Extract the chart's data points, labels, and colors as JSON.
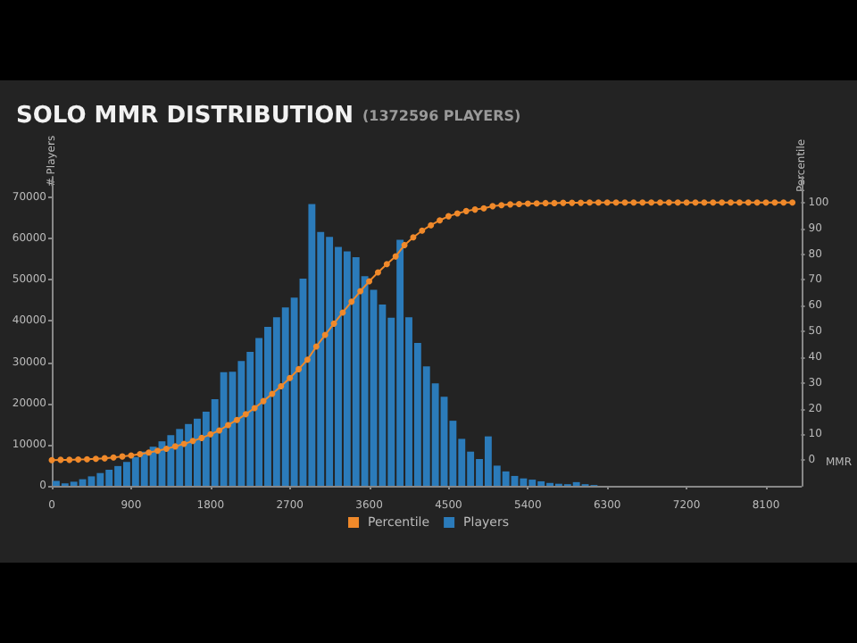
{
  "chart_data": {
    "type": "histogram",
    "title": "SOLO MMR DISTRIBUTION",
    "subtitle": "(1372596 PLAYERS)",
    "xlabel": "MMR",
    "ylabel": "# Players",
    "y2label": "Percentile",
    "bins": [
      0,
      100,
      200,
      300,
      400,
      500,
      600,
      700,
      800,
      900,
      1000,
      1100,
      1200,
      1300,
      1400,
      1500,
      1600,
      1700,
      1800,
      1900,
      2000,
      2100,
      2200,
      2300,
      2400,
      2500,
      2600,
      2700,
      2800,
      2900,
      3000,
      3100,
      3200,
      3300,
      3400,
      3500,
      3600,
      3700,
      3800,
      3900,
      4000,
      4100,
      4200,
      4300,
      4400,
      4500,
      4600,
      4700,
      4800,
      4900,
      5000,
      5100,
      5200,
      5300,
      5400,
      5500,
      5600,
      5700,
      5800,
      5900,
      6000,
      6100,
      6200,
      6300
    ],
    "series": [
      {
        "name": "Percentile",
        "type": "line",
        "axis": "y2",
        "color": "#f0892a",
        "marker": "circle",
        "x": [
          0,
          100,
          200,
          300,
          400,
          500,
          600,
          700,
          800,
          900,
          1000,
          1100,
          1200,
          1300,
          1400,
          1500,
          1600,
          1700,
          1800,
          1900,
          2000,
          2100,
          2200,
          2300,
          2400,
          2500,
          2600,
          2700,
          2800,
          2900,
          3000,
          3100,
          3200,
          3300,
          3400,
          3500,
          3600,
          3700,
          3800,
          3900,
          4000,
          4100,
          4200,
          4300,
          4400,
          4500,
          4600,
          4700,
          4800,
          4900,
          5000,
          5100,
          5200,
          5300,
          5400,
          5500,
          5600,
          5700,
          5800,
          5900,
          6000,
          6100,
          6200,
          6300,
          6400,
          6500,
          6600,
          6700,
          6800,
          6900,
          7000,
          7100,
          7200,
          7300,
          7400,
          7500,
          7600,
          7700,
          7800,
          7900,
          8000,
          8100,
          8200,
          8300,
          8400
        ],
        "values": [
          0,
          0.1,
          0.1,
          0.2,
          0.3,
          0.5,
          0.7,
          1.0,
          1.4,
          1.8,
          2.3,
          2.9,
          3.6,
          4.4,
          5.3,
          6.3,
          7.4,
          8.6,
          10.0,
          11.5,
          13.6,
          15.6,
          17.8,
          20.2,
          22.9,
          25.7,
          28.7,
          31.9,
          35.3,
          39.0,
          44.1,
          48.6,
          53.0,
          57.3,
          61.5,
          65.6,
          69.4,
          72.9,
          76.1,
          79.1,
          83.5,
          86.5,
          89.1,
          91.2,
          93.1,
          94.7,
          95.8,
          96.7,
          97.3,
          97.8,
          98.6,
          99.0,
          99.3,
          99.4,
          99.6,
          99.7,
          99.8,
          99.8,
          99.9,
          99.9,
          99.9,
          100,
          100,
          100,
          100,
          100,
          100,
          100,
          100,
          100,
          100,
          100,
          100,
          100,
          100,
          100,
          100,
          100,
          100,
          100,
          100,
          100,
          100,
          100,
          100
        ]
      },
      {
        "name": "Players",
        "color": "#2b7bba",
        "values": [
          1200,
          600,
          1000,
          1600,
          2300,
          3100,
          3900,
          4800,
          5800,
          7000,
          8300,
          9500,
          10800,
          12300,
          13800,
          15000,
          16300,
          18000,
          21000,
          27600,
          27700,
          30300,
          32500,
          35900,
          38600,
          40900,
          43300,
          45700,
          50300,
          68400,
          61600,
          60400,
          58000,
          56900,
          55500,
          50900,
          47600,
          44000,
          40800,
          59700,
          40900,
          34700,
          29000,
          24900,
          21600,
          15800,
          11400,
          8300,
          6500,
          12000,
          4900,
          3500,
          2400,
          1800,
          1500,
          1100,
          700,
          500,
          400,
          900,
          400,
          200,
          null
        ]
      }
    ],
    "xlim": [
      0,
      8500
    ],
    "xticks": [
      0,
      900,
      1800,
      2700,
      3600,
      4500,
      5400,
      6300,
      7200,
      8100
    ],
    "ylim": [
      0,
      75000
    ],
    "yticks": [
      0,
      10000,
      20000,
      30000,
      40000,
      50000,
      60000,
      70000
    ],
    "y2lim": [
      -10,
      110
    ],
    "y2ticks": [
      0,
      10,
      20,
      30,
      40,
      50,
      60,
      70,
      80,
      90,
      100
    ],
    "legend": "bottom",
    "grid": false
  }
}
